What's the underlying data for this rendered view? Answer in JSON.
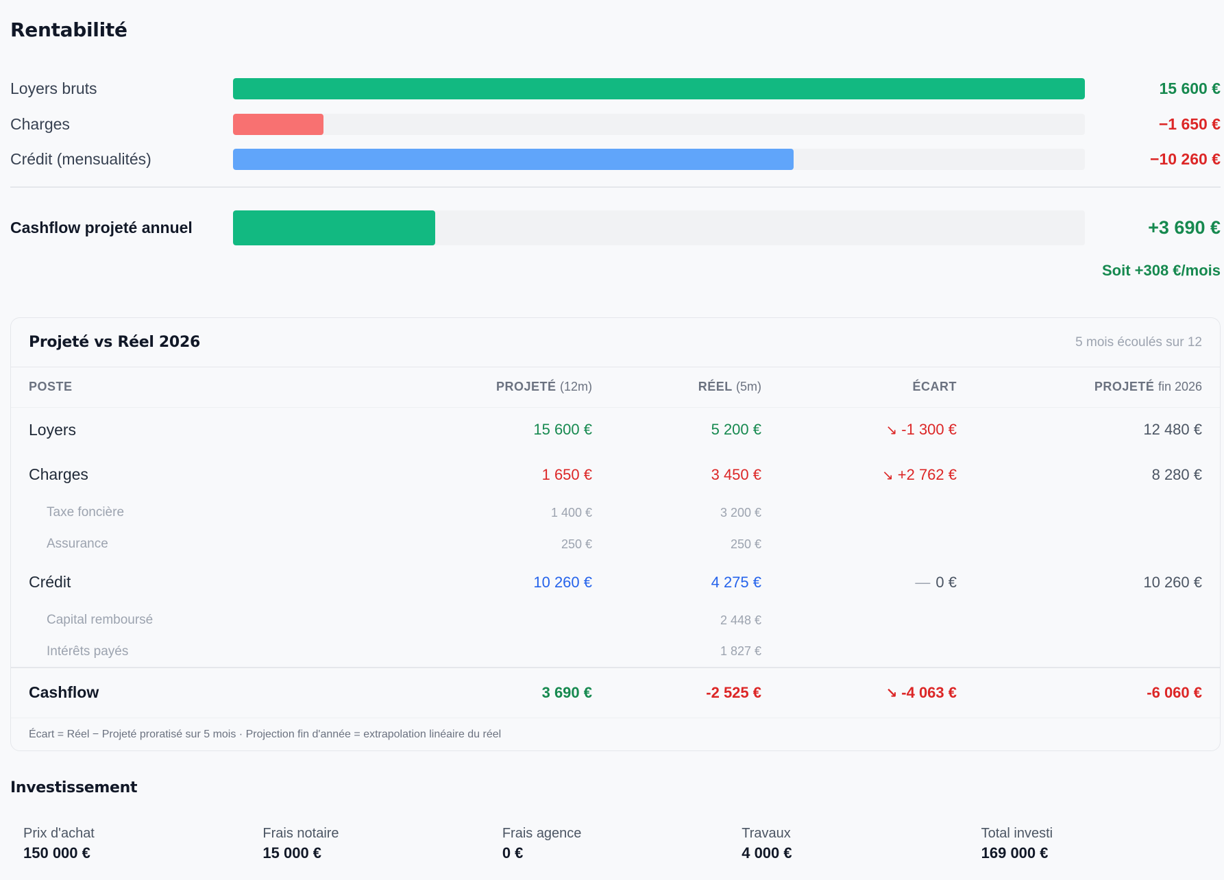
{
  "rentabilite": {
    "title": "Rentabilité",
    "rows": [
      {
        "label": "Loyers bruts",
        "value": "15 600 €",
        "fill": 1.0,
        "color": "#12b981"
      },
      {
        "label": "Charges",
        "value": "−1 650 €",
        "fill": 0.106,
        "color": "#f87171"
      },
      {
        "label": "Crédit (mensualités)",
        "value": "−10 260 €",
        "fill": 0.658,
        "color": "#60a5fa"
      }
    ],
    "cashflow": {
      "label": "Cashflow projeté annuel",
      "value": "+3 690 €",
      "fill": 0.237,
      "color": "#12b981"
    },
    "per_month": "Soit +308 €/mois"
  },
  "table": {
    "title": "Projeté vs Réel 2026",
    "meta": "5 mois écoulés sur 12",
    "headers": {
      "poste": "POSTE",
      "projete": "PROJETÉ",
      "projete_sub": "(12m)",
      "reel": "RÉEL",
      "reel_sub": "(5m)",
      "ecart": "ÉCART",
      "fin": "PROJETÉ",
      "fin_sub": "fin 2026"
    },
    "rows": {
      "loyers": {
        "poste": "Loyers",
        "projete": "15 600 €",
        "reel": "5 200 €",
        "ecart": "-1 300 €",
        "fin": "12 480 €"
      },
      "charges": {
        "poste": "Charges",
        "projete": "1 650 €",
        "reel": "3 450 €",
        "ecart": "+2 762 €",
        "fin": "8 280 €"
      },
      "taxe": {
        "poste": "Taxe foncière",
        "projete": "1 400 €",
        "reel": "3 200 €"
      },
      "assurance": {
        "poste": "Assurance",
        "projete": "250 €",
        "reel": "250 €"
      },
      "credit": {
        "poste": "Crédit",
        "projete": "10 260 €",
        "reel": "4 275 €",
        "ecart": "0 €",
        "fin": "10 260 €"
      },
      "capital": {
        "poste": "Capital remboursé",
        "reel": "2 448 €"
      },
      "interets": {
        "poste": "Intérêts payés",
        "reel": "1 827 €"
      },
      "cashflow": {
        "poste": "Cashflow",
        "projete": "3 690 €",
        "reel": "-2 525 €",
        "ecart": "-4 063 €",
        "fin": "-6 060 €"
      }
    },
    "footnote": "Écart = Réel − Projeté proratisé sur 5 mois · Projection fin d'année = extrapolation linéaire du réel"
  },
  "investissement": {
    "title": "Investissement",
    "items": [
      {
        "label": "Prix d'achat",
        "value": "150 000 €"
      },
      {
        "label": "Frais notaire",
        "value": "15 000 €"
      },
      {
        "label": "Frais agence",
        "value": "0 €"
      },
      {
        "label": "Travaux",
        "value": "4 000 €"
      },
      {
        "label": "Total investi",
        "value": "169 000 €"
      }
    ]
  }
}
